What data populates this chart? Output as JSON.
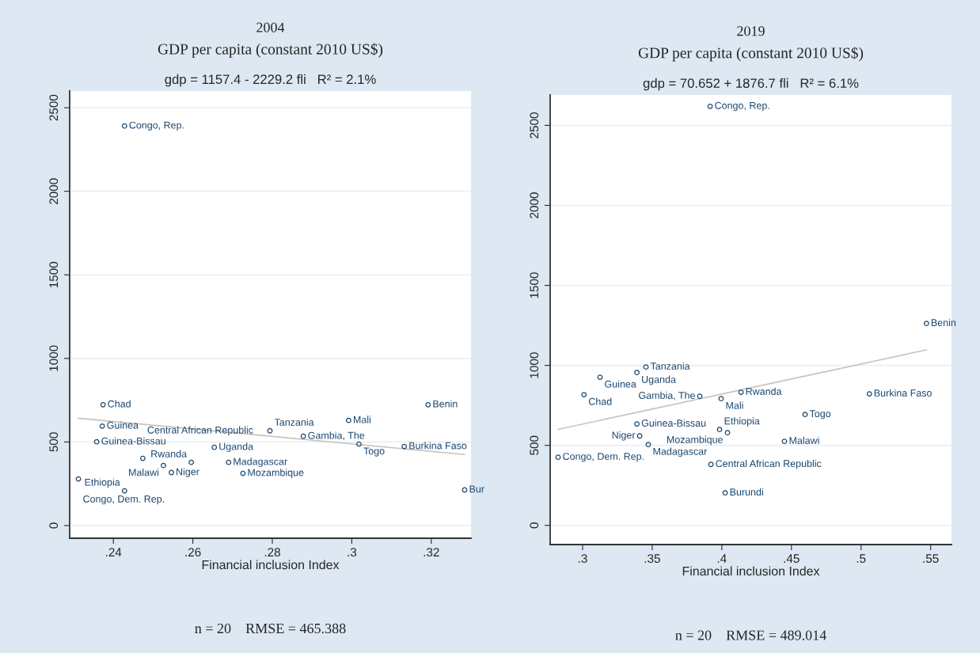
{
  "chart_data": [
    {
      "type": "scatter",
      "title": "2004",
      "subtitle": "GDP per capita (constant 2010 US$)",
      "xlabel": "Financial inclusion Index",
      "annotations": [
        "gdp = 1157.4 - 2229.2 fli   R² = 2.1%",
        "n = 20    RMSE = 465.388"
      ],
      "series": [
        {
          "type": "scatter",
          "color": "#1a476f",
          "marker": "circle",
          "x": [
            0.2428,
            0.2374,
            0.2372,
            0.2358,
            0.2474,
            0.2526,
            0.2546,
            0.2312,
            0.2428,
            0.2654,
            0.2596,
            0.269,
            0.2726,
            0.2794,
            0.2878,
            0.2992,
            0.3018,
            0.3132,
            0.3192,
            0.3284
          ],
          "values": [
            2391,
            723,
            595,
            501,
            402,
            359,
            317,
            279,
            208,
            468,
            378,
            378,
            312,
            567,
            534,
            629,
            487,
            473,
            723,
            213
          ],
          "value_labels": [
            "Congo, Rep.",
            "Chad",
            "Guinea",
            "Guinea-Bissau",
            "Central African Republic",
            "Malawi",
            "Niger",
            "Congo, Dem. Rep.",
            "Ethiopia",
            "Uganda",
            "Rwanda",
            "Madagascar",
            "Mozambique",
            "Tanzania",
            "Gambia, The",
            "Mali",
            "Togo",
            "Burkina Faso",
            "Benin",
            "Bur"
          ]
        },
        {
          "type": "line",
          "color": "#c8c2ba",
          "x": [
            0.2312,
            0.3284
          ],
          "values": [
            642,
            425
          ]
        }
      ],
      "xlim": [
        0.229,
        0.33
      ],
      "ylim": [
        -76,
        2600
      ],
      "xticks": [
        {
          "value": 0.24,
          "label": ".24"
        },
        {
          "value": 0.26,
          "label": ".26"
        },
        {
          "value": 0.28,
          "label": ".28"
        },
        {
          "value": 0.3,
          "label": ".3"
        },
        {
          "value": 0.32,
          "label": ".32"
        }
      ],
      "yticks": [
        0,
        500,
        1000,
        1500,
        2000,
        2500
      ],
      "grid": "y",
      "legend": false
    },
    {
      "type": "scatter",
      "title": "2019",
      "subtitle": "GDP per capita (constant 2010 US$)",
      "xlabel": "Financial inclusion Index",
      "annotations": [
        "gdp = 70.652 + 1876.7 fli   R² = 6.1%",
        "n = 20    RMSE = 489.014"
      ],
      "series": [
        {
          "type": "scatter",
          "color": "#1a476f",
          "marker": "circle",
          "x": [
            0.3916,
            0.547,
            0.3455,
            0.339,
            0.3125,
            0.301,
            0.3842,
            0.3995,
            0.4138,
            0.506,
            0.4598,
            0.339,
            0.3984,
            0.4041,
            0.445,
            0.341,
            0.3472,
            0.2824,
            0.3922,
            0.4024
          ],
          "values": [
            2619,
            1262,
            990,
            955,
            926,
            817,
            807,
            792,
            832,
            822,
            693,
            634,
            599,
            579,
            525,
            559,
            505,
            426,
            381,
            203
          ],
          "value_labels": [
            "Congo, Rep.",
            "Benin",
            "Tanzania",
            "Uganda",
            "Guinea",
            "Chad",
            "Gambia, The",
            "Mali",
            "Rwanda",
            "Burkina Faso",
            "Togo",
            "Guinea-Bissau",
            "Ethiopia",
            "Mozambique",
            "Malawi",
            "Niger",
            "Madagascar",
            "Congo, Dem. Rep.",
            "Central African Republic",
            "Burundi"
          ]
        },
        {
          "type": "line",
          "color": "#c8c2ba",
          "x": [
            0.2824,
            0.547
          ],
          "values": [
            600,
            1097
          ]
        }
      ],
      "xlim": [
        0.2767,
        0.565
      ],
      "ylim": [
        -120,
        2690
      ],
      "xticks": [
        {
          "value": 0.3,
          "label": ".3"
        },
        {
          "value": 0.35,
          "label": ".35"
        },
        {
          "value": 0.4,
          "label": ".4"
        },
        {
          "value": 0.45,
          "label": ".45"
        },
        {
          "value": 0.5,
          "label": ".5"
        },
        {
          "value": 0.55,
          "label": ".55"
        }
      ],
      "yticks": [
        0,
        500,
        1000,
        1500,
        2000,
        2500
      ],
      "grid": "y",
      "legend": false
    }
  ]
}
